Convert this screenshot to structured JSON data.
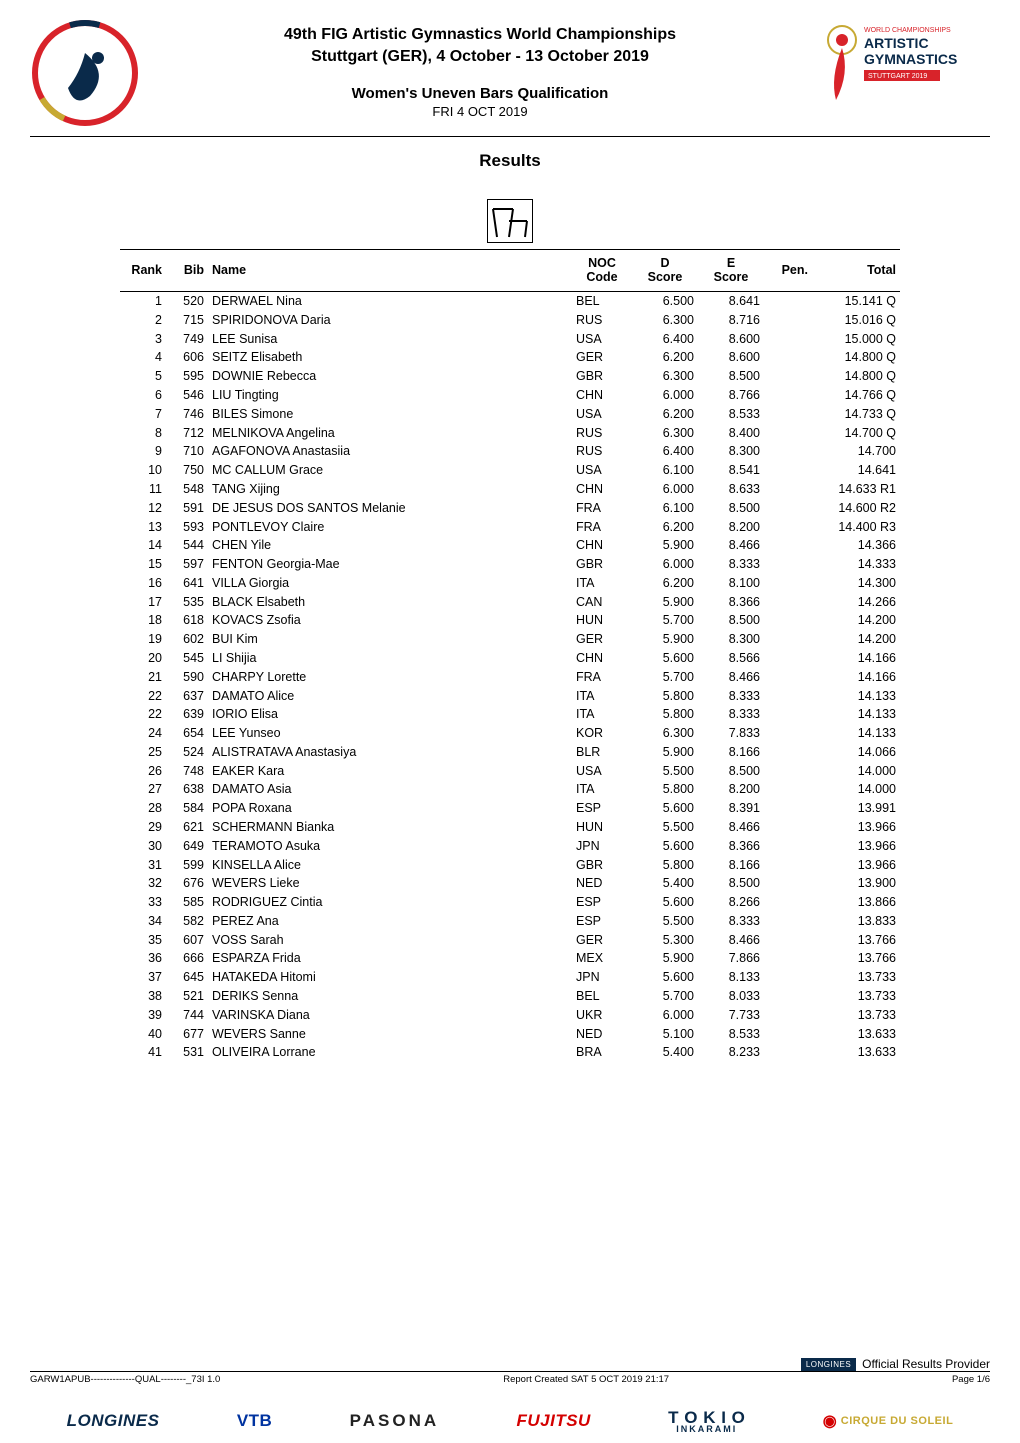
{
  "header": {
    "event_title_line1": "49th FIG Artistic Gymnastics World Championships",
    "event_title_line2": "Stuttgart (GER), 4 October - 13 October 2019",
    "subtitle": "Women's Uneven Bars Qualification",
    "date": "FRI 4 OCT 2019",
    "results_heading": "Results",
    "fig_logo_label": "FIG logo",
    "right_logo_line1": "WORLD CHAMPIONSHIPS",
    "right_logo_line2": "ARTISTIC",
    "right_logo_line3": "GYMNASTICS",
    "right_logo_line4": "STUTTGART 2019",
    "apparatus_icon_label": "uneven-bars"
  },
  "colors": {
    "text": "#000000",
    "background": "#ffffff",
    "rule": "#000000",
    "fig_red": "#d8232a",
    "fig_blue": "#0a2a4a",
    "fig_gold": "#c7a933",
    "artistic_red": "#d8232a",
    "artistic_navy": "#0a2a4a",
    "icon_stroke": "#000000",
    "longines_chip_bg": "#0a2a4a",
    "longines_chip_text": "#ffffff",
    "vtb_blue": "#0033a0",
    "fujitsu_red": "#d40000",
    "cirque_gold": "#c7a933"
  },
  "table": {
    "columns": {
      "rank": "Rank",
      "bib": "Bib",
      "name": "Name",
      "noc_line1": "NOC",
      "noc_line2": "Code",
      "d_line1": "D",
      "d_line2": "Score",
      "e_line1": "E",
      "e_line2": "Score",
      "pen": "Pen.",
      "total": "Total"
    },
    "rows": [
      {
        "rank": "1",
        "bib": "520",
        "name": "DERWAEL Nina",
        "noc": "BEL",
        "d": "6.500",
        "e": "8.641",
        "pen": "",
        "total": "15.141 Q"
      },
      {
        "rank": "2",
        "bib": "715",
        "name": "SPIRIDONOVA Daria",
        "noc": "RUS",
        "d": "6.300",
        "e": "8.716",
        "pen": "",
        "total": "15.016 Q"
      },
      {
        "rank": "3",
        "bib": "749",
        "name": "LEE Sunisa",
        "noc": "USA",
        "d": "6.400",
        "e": "8.600",
        "pen": "",
        "total": "15.000 Q"
      },
      {
        "rank": "4",
        "bib": "606",
        "name": "SEITZ Elisabeth",
        "noc": "GER",
        "d": "6.200",
        "e": "8.600",
        "pen": "",
        "total": "14.800 Q"
      },
      {
        "rank": "5",
        "bib": "595",
        "name": "DOWNIE Rebecca",
        "noc": "GBR",
        "d": "6.300",
        "e": "8.500",
        "pen": "",
        "total": "14.800 Q"
      },
      {
        "rank": "6",
        "bib": "546",
        "name": "LIU Tingting",
        "noc": "CHN",
        "d": "6.000",
        "e": "8.766",
        "pen": "",
        "total": "14.766 Q"
      },
      {
        "rank": "7",
        "bib": "746",
        "name": "BILES Simone",
        "noc": "USA",
        "d": "6.200",
        "e": "8.533",
        "pen": "",
        "total": "14.733 Q"
      },
      {
        "rank": "8",
        "bib": "712",
        "name": "MELNIKOVA Angelina",
        "noc": "RUS",
        "d": "6.300",
        "e": "8.400",
        "pen": "",
        "total": "14.700 Q"
      },
      {
        "rank": "9",
        "bib": "710",
        "name": "AGAFONOVA Anastasiia",
        "noc": "RUS",
        "d": "6.400",
        "e": "8.300",
        "pen": "",
        "total": "14.700"
      },
      {
        "rank": "10",
        "bib": "750",
        "name": "MC CALLUM Grace",
        "noc": "USA",
        "d": "6.100",
        "e": "8.541",
        "pen": "",
        "total": "14.641"
      },
      {
        "rank": "11",
        "bib": "548",
        "name": "TANG Xijing",
        "noc": "CHN",
        "d": "6.000",
        "e": "8.633",
        "pen": "",
        "total": "14.633 R1"
      },
      {
        "rank": "12",
        "bib": "591",
        "name": "DE JESUS DOS SANTOS Melanie",
        "noc": "FRA",
        "d": "6.100",
        "e": "8.500",
        "pen": "",
        "total": "14.600 R2"
      },
      {
        "rank": "13",
        "bib": "593",
        "name": "PONTLEVOY Claire",
        "noc": "FRA",
        "d": "6.200",
        "e": "8.200",
        "pen": "",
        "total": "14.400 R3"
      },
      {
        "rank": "14",
        "bib": "544",
        "name": "CHEN Yile",
        "noc": "CHN",
        "d": "5.900",
        "e": "8.466",
        "pen": "",
        "total": "14.366"
      },
      {
        "rank": "15",
        "bib": "597",
        "name": "FENTON Georgia-Mae",
        "noc": "GBR",
        "d": "6.000",
        "e": "8.333",
        "pen": "",
        "total": "14.333"
      },
      {
        "rank": "16",
        "bib": "641",
        "name": "VILLA Giorgia",
        "noc": "ITA",
        "d": "6.200",
        "e": "8.100",
        "pen": "",
        "total": "14.300"
      },
      {
        "rank": "17",
        "bib": "535",
        "name": "BLACK Elsabeth",
        "noc": "CAN",
        "d": "5.900",
        "e": "8.366",
        "pen": "",
        "total": "14.266"
      },
      {
        "rank": "18",
        "bib": "618",
        "name": "KOVACS Zsofia",
        "noc": "HUN",
        "d": "5.700",
        "e": "8.500",
        "pen": "",
        "total": "14.200"
      },
      {
        "rank": "19",
        "bib": "602",
        "name": "BUI Kim",
        "noc": "GER",
        "d": "5.900",
        "e": "8.300",
        "pen": "",
        "total": "14.200"
      },
      {
        "rank": "20",
        "bib": "545",
        "name": "LI Shijia",
        "noc": "CHN",
        "d": "5.600",
        "e": "8.566",
        "pen": "",
        "total": "14.166"
      },
      {
        "rank": "21",
        "bib": "590",
        "name": "CHARPY Lorette",
        "noc": "FRA",
        "d": "5.700",
        "e": "8.466",
        "pen": "",
        "total": "14.166"
      },
      {
        "rank": "22",
        "bib": "637",
        "name": "DAMATO Alice",
        "noc": "ITA",
        "d": "5.800",
        "e": "8.333",
        "pen": "",
        "total": "14.133"
      },
      {
        "rank": "22",
        "bib": "639",
        "name": "IORIO Elisa",
        "noc": "ITA",
        "d": "5.800",
        "e": "8.333",
        "pen": "",
        "total": "14.133"
      },
      {
        "rank": "24",
        "bib": "654",
        "name": "LEE Yunseo",
        "noc": "KOR",
        "d": "6.300",
        "e": "7.833",
        "pen": "",
        "total": "14.133"
      },
      {
        "rank": "25",
        "bib": "524",
        "name": "ALISTRATAVA Anastasiya",
        "noc": "BLR",
        "d": "5.900",
        "e": "8.166",
        "pen": "",
        "total": "14.066"
      },
      {
        "rank": "26",
        "bib": "748",
        "name": "EAKER Kara",
        "noc": "USA",
        "d": "5.500",
        "e": "8.500",
        "pen": "",
        "total": "14.000"
      },
      {
        "rank": "27",
        "bib": "638",
        "name": "DAMATO Asia",
        "noc": "ITA",
        "d": "5.800",
        "e": "8.200",
        "pen": "",
        "total": "14.000"
      },
      {
        "rank": "28",
        "bib": "584",
        "name": "POPA Roxana",
        "noc": "ESP",
        "d": "5.600",
        "e": "8.391",
        "pen": "",
        "total": "13.991"
      },
      {
        "rank": "29",
        "bib": "621",
        "name": "SCHERMANN Bianka",
        "noc": "HUN",
        "d": "5.500",
        "e": "8.466",
        "pen": "",
        "total": "13.966"
      },
      {
        "rank": "30",
        "bib": "649",
        "name": "TERAMOTO Asuka",
        "noc": "JPN",
        "d": "5.600",
        "e": "8.366",
        "pen": "",
        "total": "13.966"
      },
      {
        "rank": "31",
        "bib": "599",
        "name": "KINSELLA Alice",
        "noc": "GBR",
        "d": "5.800",
        "e": "8.166",
        "pen": "",
        "total": "13.966"
      },
      {
        "rank": "32",
        "bib": "676",
        "name": "WEVERS Lieke",
        "noc": "NED",
        "d": "5.400",
        "e": "8.500",
        "pen": "",
        "total": "13.900"
      },
      {
        "rank": "33",
        "bib": "585",
        "name": "RODRIGUEZ Cintia",
        "noc": "ESP",
        "d": "5.600",
        "e": "8.266",
        "pen": "",
        "total": "13.866"
      },
      {
        "rank": "34",
        "bib": "582",
        "name": "PEREZ Ana",
        "noc": "ESP",
        "d": "5.500",
        "e": "8.333",
        "pen": "",
        "total": "13.833"
      },
      {
        "rank": "35",
        "bib": "607",
        "name": "VOSS Sarah",
        "noc": "GER",
        "d": "5.300",
        "e": "8.466",
        "pen": "",
        "total": "13.766"
      },
      {
        "rank": "36",
        "bib": "666",
        "name": "ESPARZA Frida",
        "noc": "MEX",
        "d": "5.900",
        "e": "7.866",
        "pen": "",
        "total": "13.766"
      },
      {
        "rank": "37",
        "bib": "645",
        "name": "HATAKEDA Hitomi",
        "noc": "JPN",
        "d": "5.600",
        "e": "8.133",
        "pen": "",
        "total": "13.733"
      },
      {
        "rank": "38",
        "bib": "521",
        "name": "DERIKS Senna",
        "noc": "BEL",
        "d": "5.700",
        "e": "8.033",
        "pen": "",
        "total": "13.733"
      },
      {
        "rank": "39",
        "bib": "744",
        "name": "VARINSKA Diana",
        "noc": "UKR",
        "d": "6.000",
        "e": "7.733",
        "pen": "",
        "total": "13.733"
      },
      {
        "rank": "40",
        "bib": "677",
        "name": "WEVERS Sanne",
        "noc": "NED",
        "d": "5.100",
        "e": "8.533",
        "pen": "",
        "total": "13.633"
      },
      {
        "rank": "41",
        "bib": "531",
        "name": "OLIVEIRA Lorrane",
        "noc": "BRA",
        "d": "5.400",
        "e": "8.233",
        "pen": "",
        "total": "13.633"
      }
    ]
  },
  "footer": {
    "orp_chip": "LONGINES",
    "orp_text": "Official Results Provider",
    "left_code": "GARW1APUB--------------QUAL--------_73I 1.0",
    "center_text": "Report Created  SAT 5 OCT 2019 21:17",
    "page": "Page 1/6"
  },
  "sponsors": {
    "longines": "LONGINES",
    "vtb": "VTB",
    "pasona": "PASONA",
    "fujitsu": "FUJITSU",
    "tokio_line1": "T O K I O",
    "tokio_line2": "INKARAMI",
    "cirque": "CIRQUE DU SOLEIL"
  }
}
